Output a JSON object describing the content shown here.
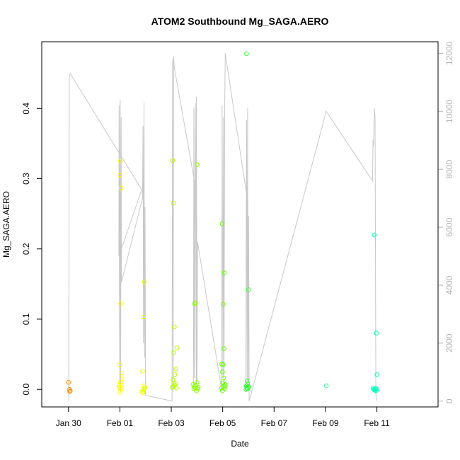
{
  "chart_data": {
    "type": "scatter",
    "title": "ATOM2 Southbound Mg_SAGA.AERO",
    "xlabel": "Date",
    "ylabel": "Mg_SAGA.AERO",
    "x_ticks": [
      "Jan 30",
      "Feb 01",
      "Feb 03",
      "Feb 05",
      "Feb 07",
      "Feb 09",
      "Feb 11"
    ],
    "y_ticks": [
      "0.0",
      "0.1",
      "0.2",
      "0.3",
      "0.4"
    ],
    "y2_ticks": [
      "0",
      "2000",
      "4000",
      "6000",
      "8000",
      "10000",
      "12000"
    ],
    "xlim_days": [
      -3.04,
      12.38
    ],
    "ylim": [
      -0.025,
      0.495
    ],
    "y2lim": [
      -200,
      12400
    ],
    "grid": false,
    "series": [
      {
        "name": "",
        "kind": "points",
        "points": [
          [
            -2.0,
            0.01,
            "#ff8c00"
          ],
          [
            -1.97,
            0.0,
            "#ff8c00"
          ],
          [
            -1.95,
            -0.003,
            "#ff8c00"
          ],
          [
            -1.93,
            -0.002,
            "#ff8c00"
          ],
          [
            0.0,
            0.305,
            "#ffff00"
          ],
          [
            0.02,
            0.325,
            "#ffff00"
          ],
          [
            0.05,
            0.287,
            "#ffff00"
          ],
          [
            0.03,
            0.122,
            "#ffff00"
          ],
          [
            -0.02,
            0.035,
            "#ffff00"
          ],
          [
            0.07,
            0.023,
            "#ffff00"
          ],
          [
            0.05,
            0.015,
            "#ffff00"
          ],
          [
            0.02,
            0.01,
            "#ffff00"
          ],
          [
            -0.03,
            0.005,
            "#ffff00"
          ],
          [
            0.0,
            0.002,
            "#ffff00"
          ],
          [
            0.04,
            0.0,
            "#ffff00"
          ],
          [
            0.01,
            -0.004,
            "#ffff00"
          ],
          [
            0.06,
            0.006,
            "#ffff00"
          ],
          [
            -0.01,
            0.003,
            "#ffff00"
          ],
          [
            0.88,
            0.026,
            "#eaff00"
          ],
          [
            0.92,
            0.103,
            "#eaff00"
          ],
          [
            0.95,
            0.153,
            "#eaff00"
          ],
          [
            0.86,
            -0.003,
            "#eaff00"
          ],
          [
            0.9,
            -0.001,
            "#eaff00"
          ],
          [
            0.94,
            0.005,
            "#eaff00"
          ],
          [
            0.97,
            0.002,
            "#eaff00"
          ],
          [
            0.89,
            -0.005,
            "#eaff00"
          ],
          [
            0.93,
            0.001,
            "#eaff00"
          ],
          [
            2.05,
            0.326,
            "#b5ff00"
          ],
          [
            2.08,
            0.265,
            "#b5ff00"
          ],
          [
            2.12,
            0.089,
            "#b5ff00"
          ],
          [
            2.22,
            0.059,
            "#b5ff00"
          ],
          [
            2.1,
            0.052,
            "#b5ff00"
          ],
          [
            2.18,
            0.029,
            "#b5ff00"
          ],
          [
            2.14,
            0.021,
            "#b5ff00"
          ],
          [
            2.06,
            0.014,
            "#b5ff00"
          ],
          [
            2.1,
            0.009,
            "#b5ff00"
          ],
          [
            2.16,
            0.008,
            "#b5ff00"
          ],
          [
            2.13,
            0.006,
            "#b5ff00"
          ],
          [
            2.07,
            0.004,
            "#b5ff00"
          ],
          [
            2.2,
            0.002,
            "#b5ff00"
          ],
          [
            2.04,
            0.003,
            "#b5ff00"
          ],
          [
            2.9,
            0.122,
            "#8cff00"
          ],
          [
            2.94,
            0.123,
            "#8cff00"
          ],
          [
            3.0,
            0.32,
            "#8cff00"
          ],
          [
            2.85,
            0.007,
            "#8cff00"
          ],
          [
            2.9,
            0.004,
            "#8cff00"
          ],
          [
            2.95,
            0.002,
            "#8cff00"
          ],
          [
            3.0,
            0.01,
            "#8cff00"
          ],
          [
            3.05,
            0.003,
            "#8cff00"
          ],
          [
            2.88,
            0.001,
            "#8cff00"
          ],
          [
            2.93,
            0.006,
            "#8cff00"
          ],
          [
            2.98,
            -0.002,
            "#8cff00"
          ],
          [
            3.02,
            0.001,
            "#8cff00"
          ],
          [
            3.98,
            0.236,
            "#66ff00"
          ],
          [
            4.02,
            0.121,
            "#66ff00"
          ],
          [
            4.06,
            0.166,
            "#66ff00"
          ],
          [
            4.05,
            0.058,
            "#66ff00"
          ],
          [
            3.97,
            0.036,
            "#66ff00"
          ],
          [
            4.01,
            0.035,
            "#66ff00"
          ],
          [
            3.99,
            0.025,
            "#66ff00"
          ],
          [
            4.04,
            0.016,
            "#66ff00"
          ],
          [
            4.0,
            0.009,
            "#66ff00"
          ],
          [
            4.08,
            0.007,
            "#66ff00"
          ],
          [
            4.03,
            0.004,
            "#66ff00"
          ],
          [
            3.96,
            0.002,
            "#66ff00"
          ],
          [
            4.07,
            0.001,
            "#66ff00"
          ],
          [
            3.99,
            -0.002,
            "#66ff00"
          ],
          [
            4.1,
            0.005,
            "#66ff00"
          ],
          [
            4.93,
            0.478,
            "#33ff33"
          ],
          [
            5.0,
            0.142,
            "#33ff33"
          ],
          [
            4.95,
            0.012,
            "#33ff33"
          ],
          [
            4.97,
            0.008,
            "#33ff33"
          ],
          [
            4.92,
            0.005,
            "#33ff33"
          ],
          [
            4.99,
            0.004,
            "#33ff33"
          ],
          [
            4.94,
            0.002,
            "#33ff33"
          ],
          [
            4.96,
            0.001,
            "#33ff33"
          ],
          [
            4.91,
            0.0,
            "#33ff33"
          ],
          [
            5.02,
            0.003,
            "#33ff33"
          ],
          [
            8.03,
            0.005,
            "#33ff99"
          ],
          [
            9.9,
            0.22,
            "#00ffbb"
          ],
          [
            9.98,
            0.08,
            "#00ffbb"
          ],
          [
            10.0,
            0.021,
            "#00ffbb"
          ],
          [
            9.85,
            0.002,
            "#00ffbb"
          ],
          [
            9.88,
            0.0,
            "#00ffbb"
          ],
          [
            9.92,
            -0.001,
            "#00ffbb"
          ],
          [
            9.95,
            0.001,
            "#00ffbb"
          ],
          [
            9.97,
            -0.002,
            "#00ffbb"
          ],
          [
            9.9,
            -0.001,
            "#00ffbb"
          ],
          [
            10.0,
            0.0,
            "#00ffbb"
          ]
        ]
      },
      {
        "name": "",
        "kind": "line-right-axis",
        "color": "#c8c8c8",
        "points": [
          [
            -1.99,
            0
          ],
          [
            -1.97,
            11200
          ],
          [
            -1.93,
            11300
          ],
          [
            0.85,
            7300
          ],
          [
            -0.04,
            5000
          ],
          [
            -0.03,
            10200
          ],
          [
            -0.01,
            500
          ],
          [
            0.01,
            10400
          ],
          [
            0.03,
            300
          ],
          [
            0.05,
            9800
          ],
          [
            0.06,
            4100
          ],
          [
            0.88,
            7000
          ],
          [
            0.9,
            9500
          ],
          [
            0.92,
            2000
          ],
          [
            0.94,
            10300
          ],
          [
            0.96,
            1500
          ],
          [
            0.98,
            6700
          ],
          [
            1.0,
            200
          ],
          [
            2.03,
            0
          ],
          [
            2.05,
            11800
          ],
          [
            2.07,
            300
          ],
          [
            2.09,
            11900
          ],
          [
            2.12,
            11500
          ],
          [
            2.9,
            7600
          ],
          [
            2.86,
            400
          ],
          [
            2.88,
            10100
          ],
          [
            2.9,
            800
          ],
          [
            2.94,
            10300
          ],
          [
            2.97,
            600
          ],
          [
            2.98,
            10500
          ],
          [
            3.0,
            500
          ],
          [
            3.02,
            5500
          ],
          [
            3.96,
            400
          ],
          [
            3.98,
            10200
          ],
          [
            4.01,
            800
          ],
          [
            4.03,
            9800
          ],
          [
            4.05,
            600
          ],
          [
            4.08,
            10400
          ],
          [
            4.1,
            12000
          ],
          [
            4.92,
            7200
          ],
          [
            4.9,
            300
          ],
          [
            4.93,
            9700
          ],
          [
            4.95,
            700
          ],
          [
            4.97,
            10100
          ],
          [
            4.99,
            600
          ],
          [
            5.01,
            6400
          ],
          [
            5.03,
            0
          ],
          [
            8.03,
            10000
          ],
          [
            9.83,
            7600
          ],
          [
            9.85,
            9000
          ],
          [
            9.87,
            8800
          ],
          [
            9.9,
            10100
          ],
          [
            9.93,
            9800
          ],
          [
            9.96,
            300
          ],
          [
            9.98,
            0
          ]
        ]
      }
    ]
  }
}
